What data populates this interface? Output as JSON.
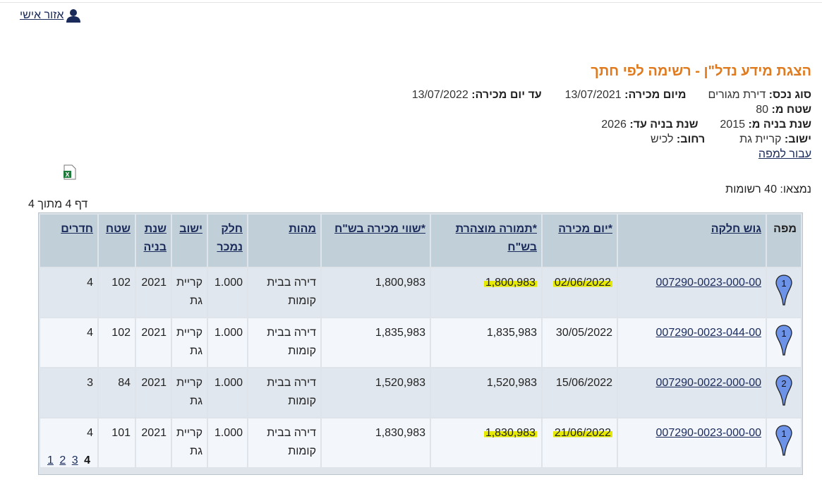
{
  "header": {
    "personal_area": "אזור אישי",
    "title": "הצגת מידע נדל\"ן - רשימה לפי חתך"
  },
  "filters": {
    "asset_type_label": "סוג נכס:",
    "asset_type": "דירת מגורים",
    "from_date_label": "מיום מכירה:",
    "from_date": "13/07/2021",
    "to_date_label": "עד יום מכירה:",
    "to_date": "13/07/2022",
    "area_from_label": "שטח מ:",
    "area_from": "80",
    "year_from_label": "שנת בניה מ:",
    "year_from": "2015",
    "year_to_label": "שנת בניה עד:",
    "year_to": "2026",
    "city_label": "ישוב:",
    "city": "קריית גת",
    "street_label": "רחוב:",
    "street": "לכיש",
    "map_link": "עבור למפה"
  },
  "results": {
    "found": "נמצאו: 40 רשומות",
    "page_info": "דף 4 מתוך 4"
  },
  "table": {
    "headers": [
      "מפה",
      "גוש חלקה",
      "*יום מכירה",
      "*תמורה מוצהרת בש\"ח",
      "*שווי מכירה בש\"ח",
      "מהות",
      "חלק נמכר",
      "ישוב",
      "שנת בניה",
      "שטח",
      "חדרים"
    ],
    "rows": [
      {
        "pin": "1",
        "gush": "007290-0023-000-00",
        "date": "02/06/2022",
        "declared": "1,800,983",
        "value": "1,800,983",
        "mahut": "דירה בבית קומות",
        "part": "1.000",
        "city": "קריית גת",
        "year": "2021",
        "area": "102",
        "rooms": "4",
        "highlighted": true
      },
      {
        "pin": "1",
        "gush": "007290-0023-044-00",
        "date": "30/05/2022",
        "declared": "1,835,983",
        "value": "1,835,983",
        "mahut": "דירה בבית קומות",
        "part": "1.000",
        "city": "קריית גת",
        "year": "2021",
        "area": "102",
        "rooms": "4",
        "highlighted": false
      },
      {
        "pin": "2",
        "gush": "007290-0022-000-00",
        "date": "15/06/2022",
        "declared": "1,520,983",
        "value": "1,520,983",
        "mahut": "דירה בבית קומות",
        "part": "1.000",
        "city": "קריית גת",
        "year": "2021",
        "area": "84",
        "rooms": "3",
        "highlighted": false
      },
      {
        "pin": "1",
        "gush": "007290-0023-000-00",
        "date": "21/06/2022",
        "declared": "1,830,983",
        "value": "1,830,983",
        "mahut": "דירה בבית קומות",
        "part": "1.000",
        "city": "קריית גת",
        "year": "2021",
        "area": "101",
        "rooms": "4",
        "highlighted": true
      }
    ]
  },
  "pager": {
    "pages": [
      "1",
      "2",
      "3"
    ],
    "current": "4"
  },
  "colors": {
    "title": "#e07a1f",
    "header_bg": "#c1cfd8",
    "highlight": "#e5ea00",
    "pin": "#6d93e8"
  }
}
